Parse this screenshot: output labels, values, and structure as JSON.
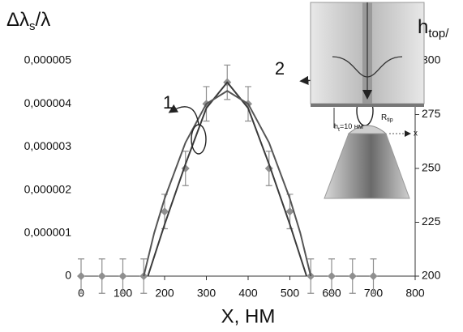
{
  "chart_data": {
    "type": "line",
    "y_label": {
      "main": "Δλ",
      "sub": "s",
      "rest": "/λ"
    },
    "y2_label": {
      "main": "h",
      "sub": "top/"
    },
    "x_label": "X, НМ",
    "xlim": [
      0,
      800
    ],
    "xticks": [
      0,
      100,
      200,
      300,
      400,
      500,
      600,
      700,
      800
    ],
    "ylim": [
      0,
      5e-06
    ],
    "yticks": [
      0,
      {
        "value": 1e-06,
        "label": "0,000001"
      },
      {
        "value": 2e-06,
        "label": "0,000002"
      },
      {
        "value": 3e-06,
        "label": "0,000003"
      },
      {
        "value": 4e-06,
        "label": "0,000004"
      },
      {
        "value": 5e-06,
        "label": "0,000005"
      }
    ],
    "y2lim": [
      200,
      300
    ],
    "y2ticks": [
      200,
      225,
      250,
      275,
      300
    ],
    "series": [
      {
        "color": "#8f8f8f",
        "marker": "diamond",
        "x": [
          0,
          50,
          100,
          150,
          200,
          250,
          300,
          350,
          400,
          450,
          500,
          550,
          600,
          650,
          700
        ],
        "values": [
          0,
          0,
          0,
          0,
          1.5e-06,
          2.5e-06,
          4e-06,
          4.5e-06,
          4e-06,
          2.5e-06,
          1.5e-06,
          0,
          0,
          0,
          0
        ],
        "errors": [
          4e-07,
          4e-07,
          4e-07,
          4e-07,
          4e-07,
          4e-07,
          4e-07,
          4e-07,
          4e-07,
          4e-07,
          4e-07,
          4e-07,
          4e-07,
          4e-07,
          4e-07
        ]
      },
      {
        "color": "#3a3a3a",
        "x": [
          160,
          200,
          250,
          300,
          350,
          400,
          450,
          500,
          540
        ],
        "values": [
          0,
          1.2e-06,
          2.6e-06,
          3.9e-06,
          4.5e-06,
          3.9e-06,
          2.6e-06,
          1.2e-06,
          0
        ]
      },
      {
        "color": "#555555",
        "x": [
          150,
          175,
          200,
          250,
          300,
          350,
          400,
          450,
          500,
          525,
          550
        ],
        "values": [
          0,
          1e-06,
          1.8e-06,
          3.1e-06,
          4e-06,
          4.3e-06,
          4e-06,
          3.1e-06,
          1.8e-06,
          1e-06,
          0
        ]
      }
    ],
    "annotations": [
      {
        "text": "1"
      },
      {
        "text": "2"
      }
    ],
    "inset": {
      "gap": {
        "main": "h",
        "sub": "t",
        "rest": "=10 нм"
      },
      "tip": {
        "main": "R",
        "sub": "tip"
      },
      "axis": "x"
    }
  }
}
